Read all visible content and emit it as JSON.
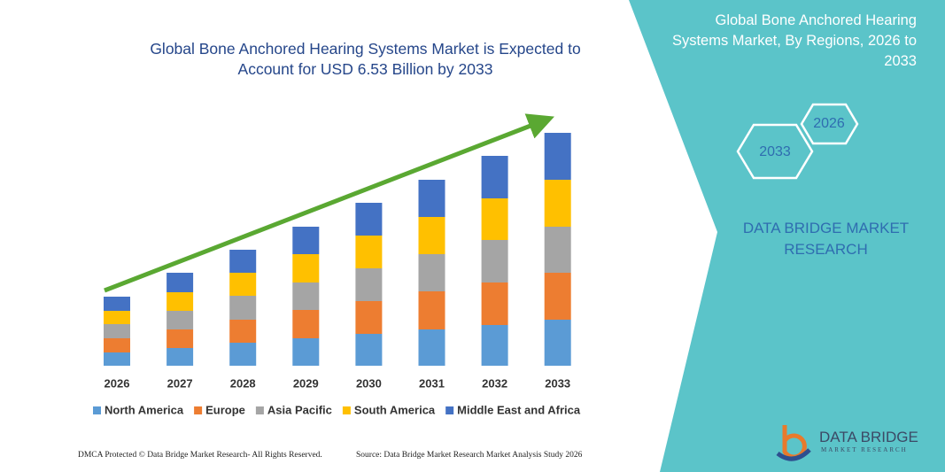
{
  "chart_data": {
    "type": "bar",
    "stacked": true,
    "title": "Global Bone Anchored Hearing Systems Market is Expected to Account for USD 6.53 Billion by 2033",
    "categories": [
      "2026",
      "2027",
      "2028",
      "2029",
      "2030",
      "2031",
      "2032",
      "2033"
    ],
    "series": [
      {
        "name": "North America",
        "color": "#5b9bd5",
        "values": [
          15,
          20,
          26,
          31,
          36,
          41,
          46,
          52
        ]
      },
      {
        "name": "Europe",
        "color": "#ed7d31",
        "values": [
          16,
          21,
          26,
          32,
          37,
          43,
          48,
          53
        ]
      },
      {
        "name": "Asia Pacific",
        "color": "#a5a5a5",
        "values": [
          16,
          21,
          27,
          31,
          37,
          42,
          48,
          52
        ]
      },
      {
        "name": "South America",
        "color": "#ffc000",
        "values": [
          15,
          21,
          26,
          32,
          37,
          42,
          47,
          53
        ]
      },
      {
        "name": "Middle East and Africa",
        "color": "#4472c4",
        "values": [
          16,
          22,
          26,
          31,
          37,
          42,
          48,
          53
        ]
      }
    ]
  },
  "side_panel": {
    "title": "Global Bone Anchored Hearing Systems Market, By Regions, 2026 to 2033",
    "hexagons": [
      "2026",
      "2033"
    ],
    "brand": "DATA BRIDGE MARKET RESEARCH"
  },
  "logo": {
    "name": "DATA BRIDGE",
    "subtitle": "MARKET RESEARCH"
  },
  "footer": {
    "left": "DMCA Protected © Data Bridge Market Research-  All Rights Reserved.",
    "right": "Source: Data Bridge Market Research  Market Analysis Study 2026"
  }
}
